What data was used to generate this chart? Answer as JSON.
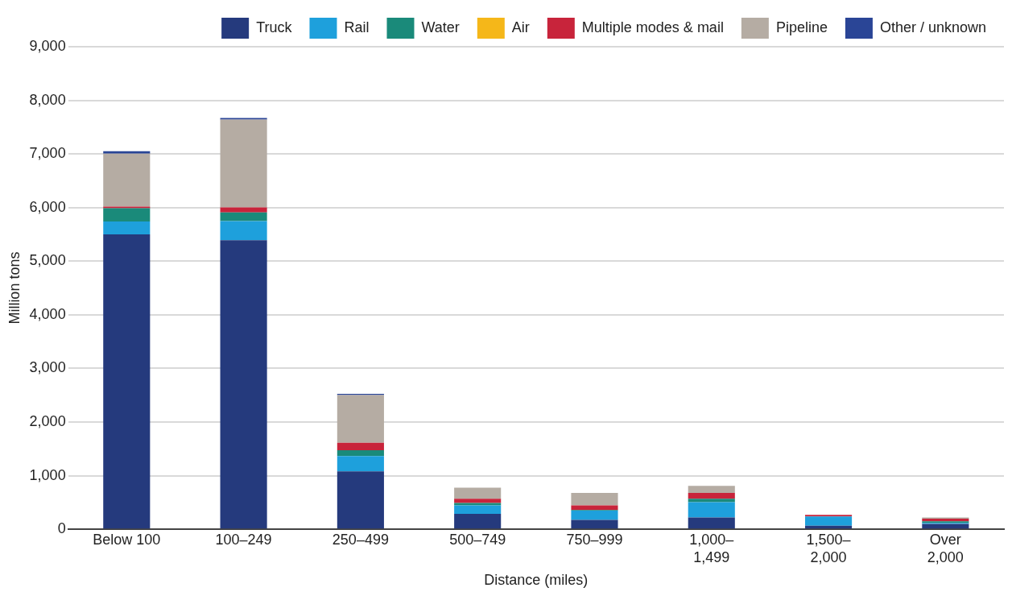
{
  "chart_data": {
    "type": "bar",
    "stacked": true,
    "xlabel": "Distance (miles)",
    "ylabel": "Million tons",
    "categories": [
      "Below 100",
      "100–249",
      "250–499",
      "500–749",
      "750–999",
      "1,000–1,499",
      "1,500–2,000",
      "Over 2,000"
    ],
    "series": [
      {
        "name": "Truck",
        "color": "#253a7d",
        "values": [
          5500,
          5390,
          1080,
          290,
          175,
          220,
          65,
          100
        ]
      },
      {
        "name": "Rail",
        "color": "#1ea0dc",
        "values": [
          240,
          360,
          285,
          155,
          175,
          285,
          175,
          20
        ]
      },
      {
        "name": "Water",
        "color": "#1a8a7a",
        "values": [
          250,
          160,
          110,
          45,
          10,
          65,
          null,
          30
        ]
      },
      {
        "name": "Air",
        "color": "#f5b719",
        "values": [
          null,
          null,
          null,
          null,
          null,
          null,
          null,
          null
        ]
      },
      {
        "name": "Multiple modes & mail",
        "color": "#c8243b",
        "values": [
          30,
          95,
          140,
          80,
          85,
          110,
          30,
          50
        ]
      },
      {
        "name": "Pipeline",
        "color": "#b5aca3",
        "values": [
          985,
          1635,
          890,
          205,
          235,
          130,
          null,
          20
        ]
      },
      {
        "name": "Other / unknown",
        "color": "#2a4596",
        "values": [
          45,
          30,
          20,
          null,
          null,
          null,
          null,
          null
        ]
      }
    ],
    "ylim": [
      0,
      9000
    ],
    "yticks": [
      0,
      {
        "value": 1000,
        "label": "1,000"
      },
      {
        "value": 2000,
        "label": "2,000"
      },
      {
        "value": 3000,
        "label": "3,000"
      },
      {
        "value": 4000,
        "label": "4,000"
      },
      {
        "value": 5000,
        "label": "5,000"
      },
      {
        "value": 6000,
        "label": "6,000"
      },
      {
        "value": 7000,
        "label": "7,000"
      },
      {
        "value": 8000,
        "label": "8,000"
      },
      {
        "value": 9000,
        "label": "9,000"
      }
    ],
    "grid": "y",
    "legend": "top"
  }
}
